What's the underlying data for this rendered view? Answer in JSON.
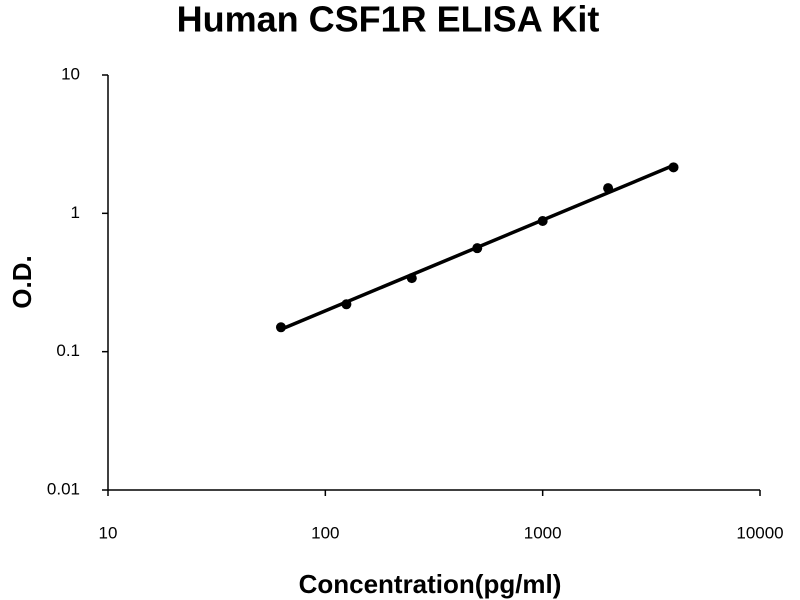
{
  "chart_data": {
    "type": "scatter",
    "title": "Human CSF1R ELISA Kit",
    "x_label": "Concentration(pg/ml)",
    "y_label": "O.D.",
    "xscale": "log",
    "yscale": "log",
    "xlim": [
      10,
      10000
    ],
    "ylim": [
      0.01,
      10
    ],
    "xticks": [
      10,
      100,
      1000,
      10000
    ],
    "yticks": [
      0.01,
      0.1,
      1,
      10
    ],
    "x": [
      62.5,
      125,
      250,
      500,
      1000,
      2000,
      4000
    ],
    "values": [
      0.15,
      0.22,
      0.34,
      0.56,
      0.88,
      1.52,
      2.15
    ],
    "color": "#000000",
    "trendline": {
      "x": [
        62.5,
        4000
      ],
      "values": [
        0.145,
        2.22
      ]
    }
  }
}
